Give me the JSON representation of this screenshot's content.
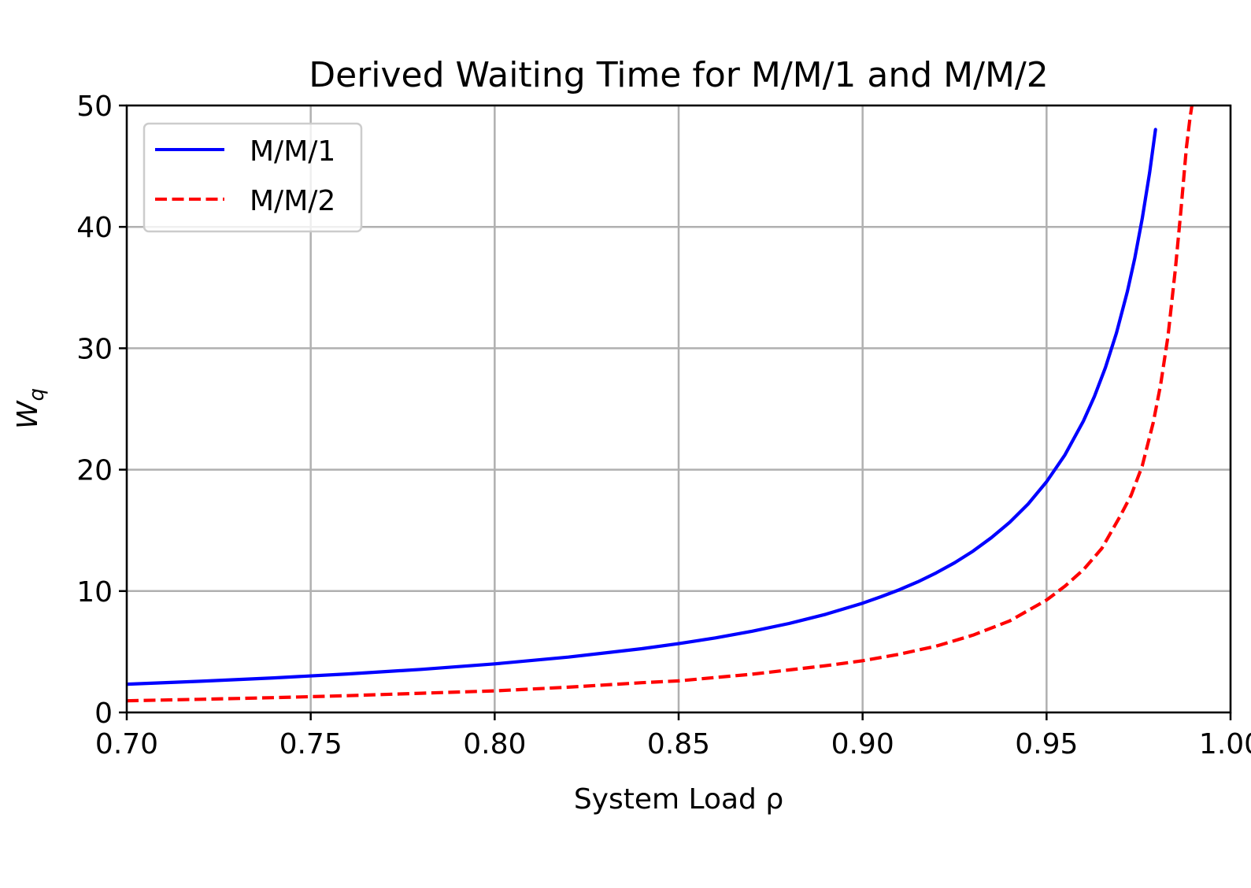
{
  "chart_data": {
    "type": "line",
    "title": "Derived Waiting Time for M/M/1 and M/M/2",
    "xlabel": "System Load ρ",
    "ylabel_main": "W",
    "ylabel_sub": "q",
    "xlim": [
      0.7,
      1.0
    ],
    "ylim": [
      0,
      50
    ],
    "x_ticks": [
      0.7,
      0.75,
      0.8,
      0.85,
      0.9,
      0.95,
      1.0
    ],
    "x_tick_labels": [
      "0.70",
      "0.75",
      "0.80",
      "0.85",
      "0.90",
      "0.95",
      "1.00"
    ],
    "y_ticks": [
      0,
      10,
      20,
      30,
      40,
      50
    ],
    "y_tick_labels": [
      "0",
      "10",
      "20",
      "30",
      "40",
      "50"
    ],
    "grid": true,
    "legend_position": "top-left",
    "series": [
      {
        "name": "M/M/1",
        "color": "#0000ff",
        "style": "solid",
        "x": [
          0.7,
          0.72,
          0.74,
          0.76,
          0.78,
          0.8,
          0.82,
          0.84,
          0.85,
          0.86,
          0.87,
          0.88,
          0.89,
          0.9,
          0.905,
          0.91,
          0.915,
          0.92,
          0.925,
          0.93,
          0.935,
          0.94,
          0.945,
          0.95,
          0.955,
          0.96,
          0.963,
          0.966,
          0.969,
          0.972,
          0.974,
          0.976,
          0.978,
          0.9796
        ],
        "y": [
          2.33,
          2.57,
          2.85,
          3.17,
          3.55,
          4.0,
          4.56,
          5.25,
          5.67,
          6.14,
          6.69,
          7.33,
          8.09,
          9.0,
          9.53,
          10.11,
          10.76,
          11.5,
          12.33,
          13.29,
          14.4,
          15.67,
          17.18,
          19.0,
          21.22,
          24.0,
          26.03,
          28.41,
          31.26,
          34.71,
          37.46,
          40.67,
          44.45,
          48.02
        ]
      },
      {
        "name": "M/M/2",
        "color": "#ff0000",
        "style": "dashed",
        "x": [
          0.7,
          0.72,
          0.74,
          0.76,
          0.78,
          0.8,
          0.82,
          0.84,
          0.85,
          0.86,
          0.87,
          0.88,
          0.89,
          0.9,
          0.91,
          0.92,
          0.93,
          0.94,
          0.95,
          0.955,
          0.96,
          0.965,
          0.97,
          0.973,
          0.976,
          0.979,
          0.981,
          0.983,
          0.985,
          0.9865,
          0.988,
          0.989,
          0.99
        ],
        "y": [
          0.96,
          1.08,
          1.22,
          1.38,
          1.58,
          1.78,
          2.08,
          2.45,
          2.6,
          2.88,
          3.15,
          3.5,
          3.85,
          4.26,
          4.8,
          5.46,
          6.37,
          7.54,
          9.26,
          10.4,
          11.76,
          13.5,
          16.17,
          17.9,
          20.3,
          23.9,
          27.0,
          31.0,
          36.5,
          41.3,
          46.5,
          49.0,
          51.0
        ]
      }
    ]
  }
}
